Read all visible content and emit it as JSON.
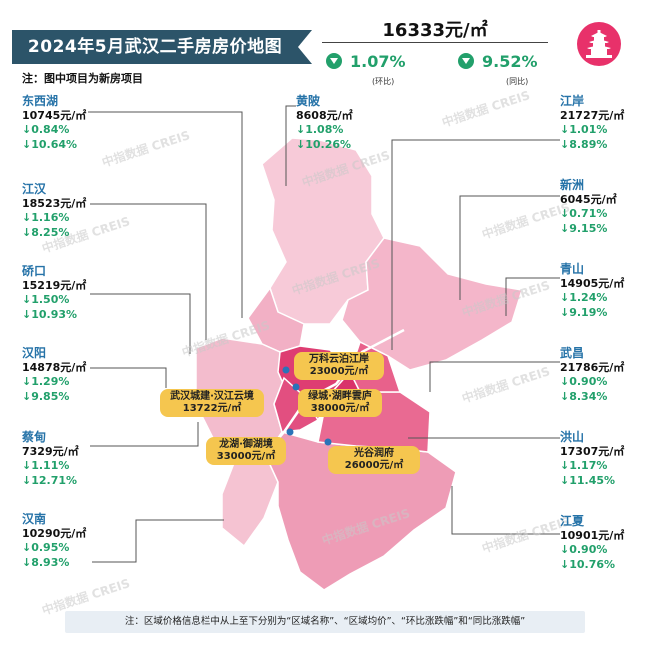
{
  "title": "2024年5月武汉二手房房价地图",
  "note_top": "注：图中项目为新房项目",
  "city_summary": {
    "avg_price": "16333元/㎡",
    "mom_change": "1.07%",
    "mom_label": "(环比)",
    "yoy_change": "9.52%",
    "yoy_label": "(同比)",
    "down_color": "#22a06b"
  },
  "districts": [
    {
      "name": "东西湖",
      "price": "10745元/㎡",
      "mom": "↓0.84%",
      "yoy": "↓10.64%"
    },
    {
      "name": "江汉",
      "price": "18523元/㎡",
      "mom": "↓1.16%",
      "yoy": "↓8.25%"
    },
    {
      "name": "硚口",
      "price": "15219元/㎡",
      "mom": "↓1.50%",
      "yoy": "↓10.93%"
    },
    {
      "name": "汉阳",
      "price": "14878元/㎡",
      "mom": "↓1.29%",
      "yoy": "↓9.85%"
    },
    {
      "name": "蔡甸",
      "price": "7329元/㎡",
      "mom": "↓1.11%",
      "yoy": "↓12.71%"
    },
    {
      "name": "汉南",
      "price": "10290元/㎡",
      "mom": "↓0.95%",
      "yoy": "↓8.93%"
    },
    {
      "name": "黄陂",
      "price": "8608元/㎡",
      "mom": "↓1.08%",
      "yoy": "↓10.26%"
    },
    {
      "name": "江岸",
      "price": "21727元/㎡",
      "mom": "↓1.01%",
      "yoy": "↓8.89%"
    },
    {
      "name": "新洲",
      "price": "6045元/㎡",
      "mom": "↓0.71%",
      "yoy": "↓9.15%"
    },
    {
      "name": "青山",
      "price": "14905元/㎡",
      "mom": "↓1.24%",
      "yoy": "↓9.19%"
    },
    {
      "name": "武昌",
      "price": "21786元/㎡",
      "mom": "↓0.90%",
      "yoy": "↓8.34%"
    },
    {
      "name": "洪山",
      "price": "17307元/㎡",
      "mom": "↓1.17%",
      "yoy": "↓11.45%"
    },
    {
      "name": "江夏",
      "price": "10901元/㎡",
      "mom": "↓0.90%",
      "yoy": "↓10.76%"
    }
  ],
  "projects": [
    {
      "name": "万科云泊江岸",
      "price": "23000元/㎡"
    },
    {
      "name": "武汉城建·汉江云境",
      "price": "13722元/㎡"
    },
    {
      "name": "绿城·湖畔雲庐",
      "price": "38000元/㎡"
    },
    {
      "name": "龙湖·御湖境",
      "price": "33000元/㎡"
    },
    {
      "name": "光谷润府",
      "price": "26000元/㎡"
    }
  ],
  "bottom_note": "注：区域价格信息栏中从上至下分别为“区域名称”、“区域均价”、“环比涨跌幅”和“同比涨跌幅”",
  "watermark": "中指数据 CREIS",
  "colors": {
    "title_bg": "#2c5469",
    "district_name": "#2673a8",
    "map_light": "#f6c8d6",
    "map_mid": "#ee9fb8",
    "map_core": "#e4447a",
    "project_label": "#f5c64f"
  }
}
